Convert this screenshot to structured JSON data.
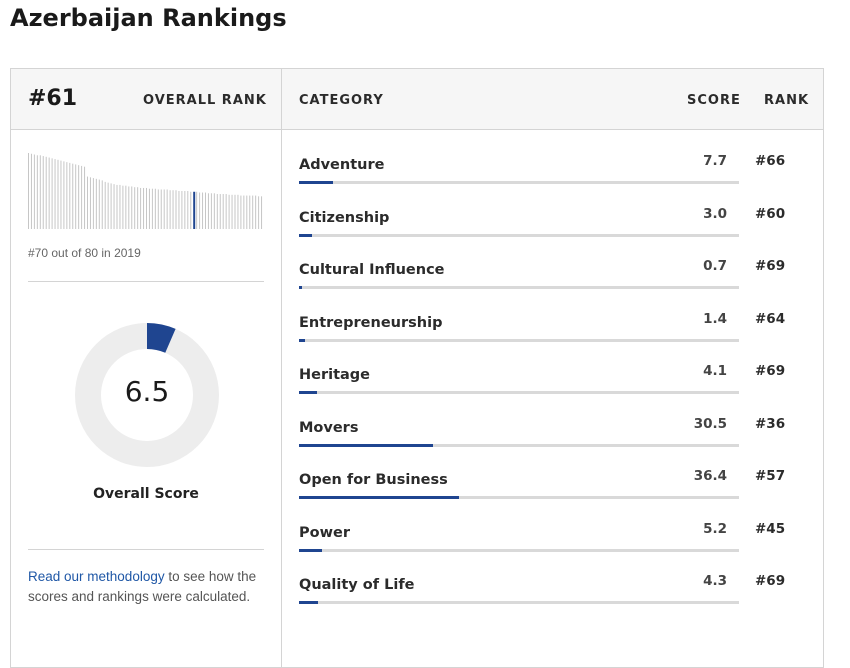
{
  "page_title": "Azerbaijan Rankings",
  "header": {
    "overall_rank": "#61",
    "overall_rank_label": "OVERALL RANK",
    "category_label": "CATEGORY",
    "score_label": "SCORE",
    "rank_label": "RANK"
  },
  "history": {
    "caption": "#70 out of 80 in 2019",
    "highlight_index": 56,
    "values": [
      100,
      99,
      98,
      97,
      97,
      96,
      95,
      94,
      93,
      92,
      91,
      90,
      89,
      88,
      87,
      86,
      85,
      84,
      83,
      82,
      69,
      68,
      67,
      66,
      65,
      64,
      62,
      61,
      60,
      59,
      58,
      58,
      57,
      57,
      56,
      56,
      55,
      55,
      54,
      54,
      54,
      53,
      53,
      53,
      52,
      52,
      52,
      52,
      51,
      51,
      51,
      50,
      50,
      50,
      50,
      49,
      49,
      49,
      48,
      48,
      48,
      47,
      47,
      47,
      46,
      46,
      46,
      46,
      45,
      45,
      45,
      45,
      44,
      44,
      44,
      44,
      44,
      44,
      43,
      43
    ]
  },
  "overall_score": {
    "value": "6.5",
    "fraction": 0.065,
    "label": "Overall Score"
  },
  "methodology": {
    "link_text": "Read our methodology",
    "rest_text": " to see how the scores and rankings were calculated."
  },
  "categories": [
    {
      "name": "Adventure",
      "score": "7.7",
      "rank": "#66",
      "fill": 0.077
    },
    {
      "name": "Citizenship",
      "score": "3.0",
      "rank": "#60",
      "fill": 0.03
    },
    {
      "name": "Cultural Influence",
      "score": "0.7",
      "rank": "#69",
      "fill": 0.007
    },
    {
      "name": "Entrepreneurship",
      "score": "1.4",
      "rank": "#64",
      "fill": 0.014
    },
    {
      "name": "Heritage",
      "score": "4.1",
      "rank": "#69",
      "fill": 0.041
    },
    {
      "name": "Movers",
      "score": "30.5",
      "rank": "#36",
      "fill": 0.305
    },
    {
      "name": "Open for Business",
      "score": "36.4",
      "rank": "#57",
      "fill": 0.364
    },
    {
      "name": "Power",
      "score": "5.2",
      "rank": "#45",
      "fill": 0.052
    },
    {
      "name": "Quality of Life",
      "score": "4.3",
      "rank": "#69",
      "fill": 0.043
    }
  ],
  "colors": {
    "accent": "#1f4590",
    "track": "#d9d9d9",
    "donut_track": "#ededed",
    "spark_bar": "#c6c6c6",
    "link": "#1f57a6"
  }
}
